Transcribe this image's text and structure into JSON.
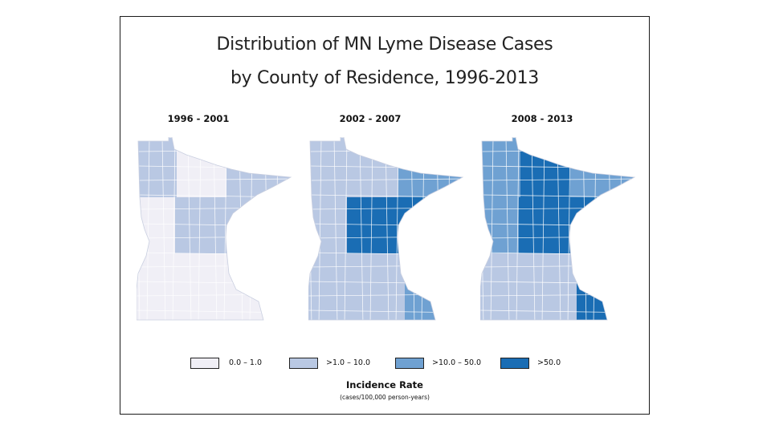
{
  "title_line1": "Distribution of MN Lyme Disease Cases",
  "title_line2": "by County of Residence, 1996-2013",
  "panels": [
    {
      "label": "1996 - 2001"
    },
    {
      "label": "2002 - 2007"
    },
    {
      "label": "2008 - 2013"
    }
  ],
  "legend": {
    "title": "Incidence Rate",
    "subtitle": "(cases/100,000 person-years)",
    "classes": [
      {
        "label": "0.0 – 1.0",
        "color": "#f0eff6"
      },
      {
        "label": ">1.0 – 10.0",
        "color": "#b9c8e3"
      },
      {
        "label": ">10.0 – 50.0",
        "color": "#6fa1d2"
      },
      {
        "label": ">50.0",
        "color": "#1a6db4"
      }
    ]
  },
  "map_data": {
    "rows": [
      "Northwest",
      "North Central",
      "Northeast/Arrowhead",
      "West Central",
      "Central",
      "East Central",
      "Southwest",
      "South Central",
      "Southeast"
    ],
    "levels": [
      [
        1,
        0,
        1,
        0,
        1,
        1,
        0,
        0,
        0
      ],
      [
        1,
        1,
        2,
        1,
        3,
        3,
        1,
        1,
        2
      ],
      [
        2,
        3,
        2,
        2,
        3,
        3,
        1,
        1,
        3
      ]
    ]
  }
}
